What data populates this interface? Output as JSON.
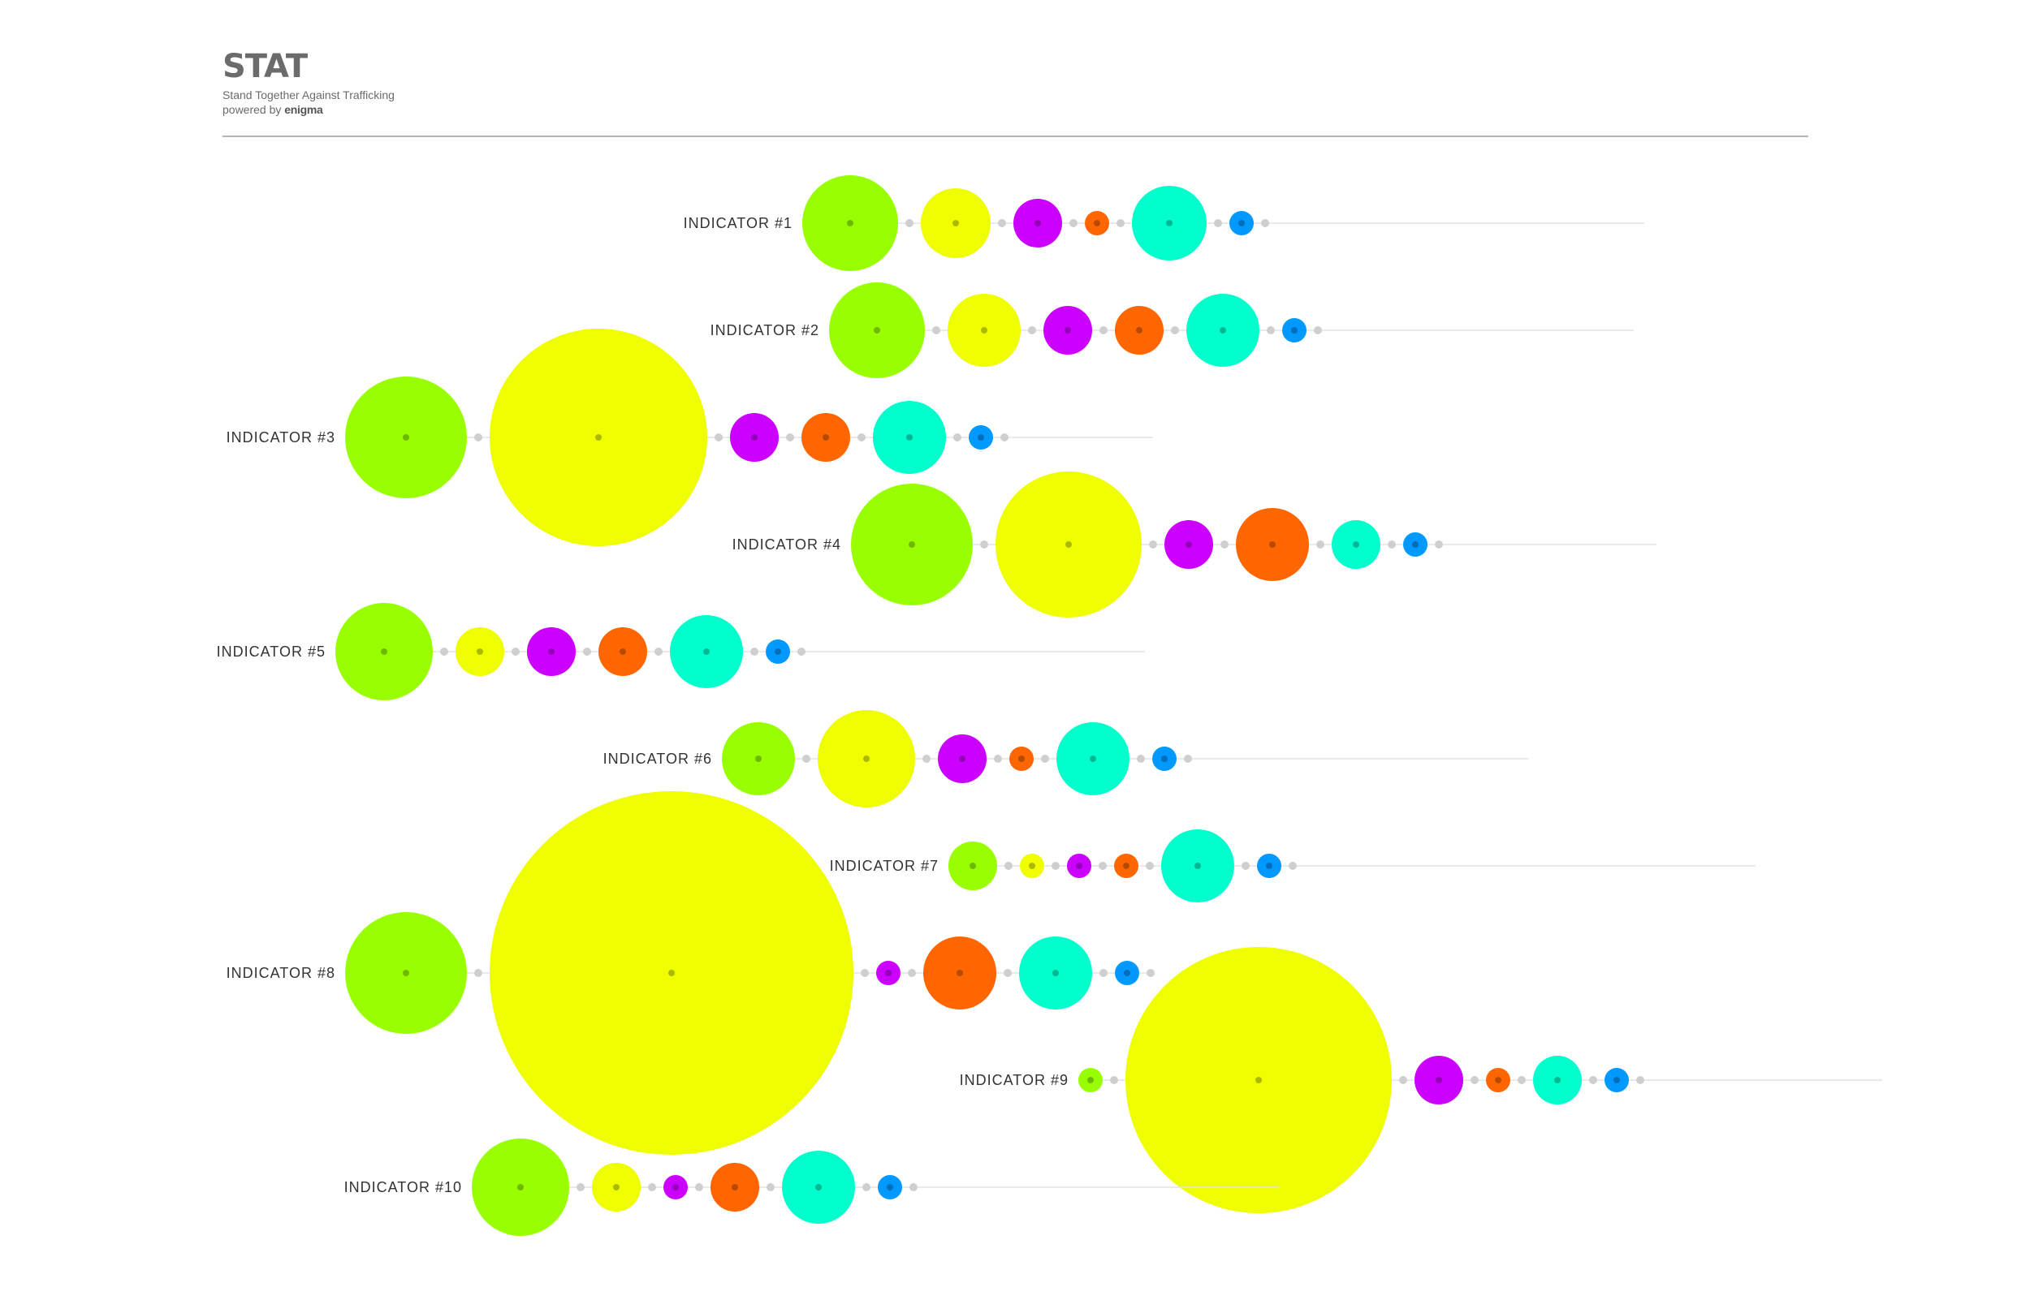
{
  "header": {
    "title": "STAT",
    "subtitle": "Stand Together Against Trafficking",
    "powered_prefix": "powered by",
    "powered_brand": "enigma"
  },
  "chart_data": {
    "type": "bubble-rows",
    "title": "",
    "xlabel": "",
    "ylabel": "",
    "grid": false,
    "legend": "none",
    "series_colors": [
      "#99ff00",
      "#f0ff00",
      "#cc00ff",
      "#ff6600",
      "#00ffcc",
      "#0099ff"
    ],
    "indicators": [
      {
        "label": "INDICATOR #1",
        "values": [
          59,
          43,
          30,
          15,
          46,
          15
        ]
      },
      {
        "label": "INDICATOR #2",
        "values": [
          59,
          45,
          30,
          30,
          45,
          15
        ]
      },
      {
        "label": "INDICATOR #3",
        "values": [
          75,
          134,
          30,
          30,
          45,
          15
        ]
      },
      {
        "label": "INDICATOR #4",
        "values": [
          75,
          90,
          30,
          45,
          30,
          15
        ]
      },
      {
        "label": "INDICATOR #5",
        "values": [
          60,
          30,
          30,
          30,
          45,
          15
        ]
      },
      {
        "label": "INDICATOR #6",
        "values": [
          45,
          60,
          30,
          15,
          45,
          15
        ]
      },
      {
        "label": "INDICATOR #7",
        "values": [
          30,
          15,
          15,
          15,
          45,
          15
        ]
      },
      {
        "label": "INDICATOR #8",
        "values": [
          75,
          224,
          15,
          45,
          45,
          15
        ]
      },
      {
        "label": "INDICATOR #9",
        "values": [
          15,
          164,
          30,
          15,
          30,
          15
        ]
      },
      {
        "label": "INDICATOR #10",
        "values": [
          60,
          30,
          15,
          30,
          45,
          15
        ]
      }
    ]
  }
}
